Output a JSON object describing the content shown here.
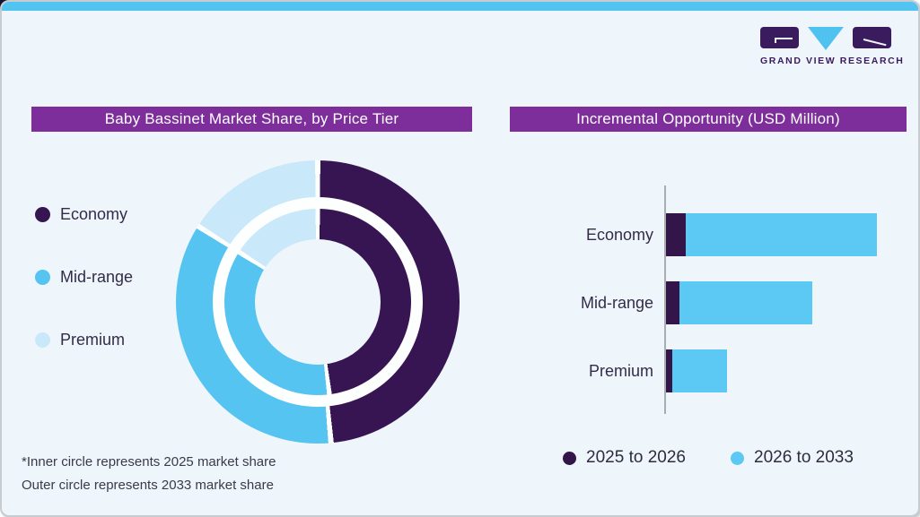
{
  "ui": {
    "top_strip_color": "#53c3f1",
    "title_bar_color": "#7d2e9a",
    "card_background": "#eff6fb",
    "logo_block_color": "#3a1b5e",
    "logo_triangle_color": "#4fc2ef",
    "logo_text": "GRAND VIEW RESEARCH"
  },
  "footnote": {
    "line1": "*Inner circle represents 2025 market share",
    "line2": "Outer circle represents 2033 market share"
  },
  "chart_data": [
    {
      "type": "donut",
      "title": "Baby Bassinet Market Share, by Price Tier",
      "categories": [
        "Economy",
        "Mid-range",
        "Premium"
      ],
      "colors": [
        "#371552",
        "#56c4f1",
        "#c9e8f9"
      ],
      "rings": [
        {
          "name": "2025 market share (inner circle)",
          "values_pct": [
            48,
            36,
            16
          ]
        },
        {
          "name": "2033 market share (outer circle)",
          "values_pct": [
            48.5,
            35.5,
            16
          ]
        }
      ],
      "legend_position": "left",
      "note": "Inner circle = 2025, outer circle = 2033; segments separated by thin white gaps; no numeric labels shown"
    },
    {
      "type": "bar",
      "title": "Incremental Opportunity (USD Million)",
      "orientation": "horizontal",
      "categories": [
        "Economy",
        "Mid-range",
        "Premium"
      ],
      "series": [
        {
          "name": "2025 to 2026",
          "color": "#331549",
          "values_rel": [
            9.4,
            6.4,
            2.9
          ]
        },
        {
          "name": "2026 to 2033",
          "color": "#5cc8f4",
          "values_rel": [
            90.6,
            63.0,
            26.0
          ]
        }
      ],
      "value_axis": "unlabeled; values are relative lengths with Economy total = 100",
      "legend_position": "bottom",
      "grid": false
    }
  ]
}
